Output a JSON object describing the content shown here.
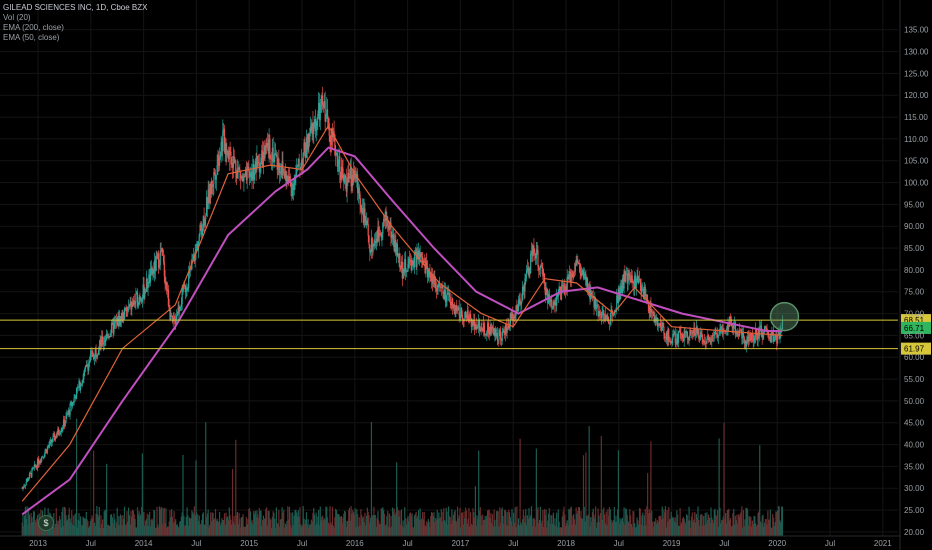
{
  "legend": {
    "symbol": "GILEAD SCIENCES INC, 1D, Cboe BZX",
    "studies": [
      "Vol (20)",
      "EMA (200, close)",
      "EMA (50, close)"
    ]
  },
  "dividend_marker": {
    "label": "$"
  },
  "colors": {
    "background": "#000000",
    "grid": "#141414",
    "up_candle": "#26a69a",
    "down_candle": "#ef5350",
    "ema_200": "#c04fc0",
    "ema_50": "#e0623a",
    "level_lines": "#d6c63a",
    "last_price_badge": "#30b55f",
    "highlight_circle": "#5b8f6a"
  },
  "chart_data": {
    "type": "candlestick",
    "title": "GILEAD SCIENCES INC, 1D, Cboe BZX",
    "x_ticks": [
      "2013",
      "Jul",
      "2014",
      "Jul",
      "2015",
      "Jul",
      "2016",
      "Jul",
      "2017",
      "Jul",
      "2018",
      "Jul",
      "2019",
      "Jul",
      "2020",
      "Jul",
      "2021"
    ],
    "y_ticks": [
      20,
      25,
      30,
      35,
      40,
      45,
      50,
      55,
      60,
      65,
      70,
      75,
      80,
      85,
      90,
      95,
      100,
      105,
      110,
      115,
      120,
      125,
      130,
      135
    ],
    "ylim": [
      17,
      135
    ],
    "grid": true,
    "price_path": [
      {
        "t": 2012.85,
        "v": 30
      },
      {
        "t": 2013.0,
        "v": 36
      },
      {
        "t": 2013.25,
        "v": 45
      },
      {
        "t": 2013.5,
        "v": 60
      },
      {
        "t": 2013.75,
        "v": 68
      },
      {
        "t": 2014.0,
        "v": 75
      },
      {
        "t": 2014.17,
        "v": 84
      },
      {
        "t": 2014.27,
        "v": 67
      },
      {
        "t": 2014.45,
        "v": 80
      },
      {
        "t": 2014.6,
        "v": 95
      },
      {
        "t": 2014.75,
        "v": 110
      },
      {
        "t": 2014.95,
        "v": 100
      },
      {
        "t": 2015.2,
        "v": 108
      },
      {
        "t": 2015.4,
        "v": 99
      },
      {
        "t": 2015.6,
        "v": 112
      },
      {
        "t": 2015.7,
        "v": 118
      },
      {
        "t": 2015.9,
        "v": 100
      },
      {
        "t": 2016.0,
        "v": 102
      },
      {
        "t": 2016.15,
        "v": 85
      },
      {
        "t": 2016.3,
        "v": 92
      },
      {
        "t": 2016.45,
        "v": 80
      },
      {
        "t": 2016.6,
        "v": 83
      },
      {
        "t": 2016.85,
        "v": 74
      },
      {
        "t": 2017.0,
        "v": 70
      },
      {
        "t": 2017.2,
        "v": 67
      },
      {
        "t": 2017.4,
        "v": 65
      },
      {
        "t": 2017.55,
        "v": 72
      },
      {
        "t": 2017.7,
        "v": 85
      },
      {
        "t": 2017.85,
        "v": 72
      },
      {
        "t": 2018.0,
        "v": 76
      },
      {
        "t": 2018.1,
        "v": 82
      },
      {
        "t": 2018.25,
        "v": 73
      },
      {
        "t": 2018.4,
        "v": 68
      },
      {
        "t": 2018.55,
        "v": 78
      },
      {
        "t": 2018.7,
        "v": 77
      },
      {
        "t": 2018.85,
        "v": 68
      },
      {
        "t": 2019.0,
        "v": 64
      },
      {
        "t": 2019.2,
        "v": 66
      },
      {
        "t": 2019.35,
        "v": 64
      },
      {
        "t": 2019.55,
        "v": 68
      },
      {
        "t": 2019.7,
        "v": 64
      },
      {
        "t": 2019.85,
        "v": 66
      },
      {
        "t": 2020.0,
        "v": 64
      },
      {
        "t": 2020.05,
        "v": 67
      }
    ],
    "ema_200_path": [
      {
        "t": 2012.85,
        "v": 24
      },
      {
        "t": 2013.3,
        "v": 32
      },
      {
        "t": 2013.8,
        "v": 50
      },
      {
        "t": 2014.3,
        "v": 67
      },
      {
        "t": 2014.8,
        "v": 88
      },
      {
        "t": 2015.25,
        "v": 98
      },
      {
        "t": 2015.55,
        "v": 103
      },
      {
        "t": 2015.75,
        "v": 108
      },
      {
        "t": 2016.0,
        "v": 106
      },
      {
        "t": 2016.35,
        "v": 96
      },
      {
        "t": 2016.75,
        "v": 85
      },
      {
        "t": 2017.15,
        "v": 75
      },
      {
        "t": 2017.55,
        "v": 70
      },
      {
        "t": 2017.95,
        "v": 75
      },
      {
        "t": 2018.3,
        "v": 76
      },
      {
        "t": 2018.7,
        "v": 73
      },
      {
        "t": 2019.1,
        "v": 70
      },
      {
        "t": 2019.5,
        "v": 68
      },
      {
        "t": 2019.9,
        "v": 66
      },
      {
        "t": 2020.05,
        "v": 66
      }
    ],
    "ema_50_path": [
      {
        "t": 2012.85,
        "v": 27
      },
      {
        "t": 2013.3,
        "v": 40
      },
      {
        "t": 2013.8,
        "v": 62
      },
      {
        "t": 2014.3,
        "v": 72
      },
      {
        "t": 2014.8,
        "v": 102
      },
      {
        "t": 2015.2,
        "v": 104
      },
      {
        "t": 2015.5,
        "v": 103
      },
      {
        "t": 2015.75,
        "v": 113
      },
      {
        "t": 2016.0,
        "v": 102
      },
      {
        "t": 2016.35,
        "v": 90
      },
      {
        "t": 2016.8,
        "v": 77
      },
      {
        "t": 2017.2,
        "v": 70
      },
      {
        "t": 2017.5,
        "v": 67
      },
      {
        "t": 2017.8,
        "v": 78
      },
      {
        "t": 2018.1,
        "v": 77
      },
      {
        "t": 2018.45,
        "v": 70
      },
      {
        "t": 2018.65,
        "v": 76
      },
      {
        "t": 2019.0,
        "v": 67
      },
      {
        "t": 2019.5,
        "v": 66
      },
      {
        "t": 2020.05,
        "v": 65
      }
    ],
    "horizontal_levels": [
      {
        "label": "68.51",
        "value": 68.51
      },
      {
        "label": "61.97",
        "value": 61.97
      }
    ],
    "last_price": {
      "label": "66.71",
      "value": 66.71
    },
    "highlight": {
      "t": 2020.05,
      "v": 69.3
    }
  }
}
